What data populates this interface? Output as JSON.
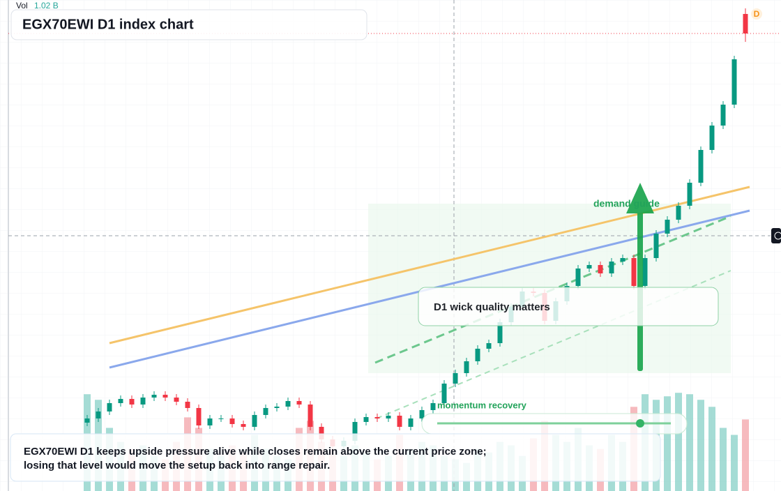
{
  "chart_data": {
    "type": "candlestick",
    "title": "EGX70EWI D1 index chart",
    "volume_label": "Vol",
    "volume_readout": "1.02 B",
    "badge": "D",
    "annotations": [
      "demand guide",
      "D1 wick quality matters",
      "momentum recovery",
      "EGX70EWI D1 keeps upside pressure alive while closes remain above the current price zone;",
      "losing that level would move the setup back into range repair."
    ],
    "open": [
      1098,
      1104,
      1114,
      1126,
      1132,
      1124,
      1134,
      1138,
      1134,
      1128,
      1119,
      1094,
      1104,
      1104,
      1096,
      1092,
      1109,
      1119,
      1121,
      1129,
      1124,
      1092,
      1074,
      1064,
      1072,
      1099,
      1106,
      1104,
      1108,
      1092,
      1104,
      1116,
      1126,
      1154,
      1169,
      1186,
      1204,
      1212,
      1242,
      1264,
      1286,
      1284,
      1244,
      1272,
      1294,
      1319,
      1324,
      1312,
      1329,
      1334,
      1294,
      1334,
      1369,
      1389,
      1409,
      1442,
      1489,
      1524,
      1554,
      1684
    ],
    "high": [
      1109,
      1119,
      1131,
      1137,
      1137,
      1139,
      1143,
      1143,
      1139,
      1133,
      1124,
      1109,
      1109,
      1109,
      1101,
      1114,
      1124,
      1126,
      1134,
      1134,
      1129,
      1097,
      1079,
      1077,
      1104,
      1111,
      1111,
      1113,
      1113,
      1109,
      1121,
      1131,
      1159,
      1174,
      1191,
      1209,
      1217,
      1247,
      1269,
      1291,
      1291,
      1289,
      1277,
      1299,
      1324,
      1329,
      1329,
      1334,
      1339,
      1339,
      1339,
      1374,
      1394,
      1414,
      1447,
      1494,
      1529,
      1559,
      1624,
      1692
    ],
    "low": [
      1093,
      1099,
      1109,
      1121,
      1119,
      1119,
      1129,
      1129,
      1123,
      1114,
      1089,
      1089,
      1099,
      1091,
      1087,
      1087,
      1104,
      1114,
      1116,
      1119,
      1087,
      1069,
      1059,
      1059,
      1067,
      1094,
      1099,
      1099,
      1087,
      1087,
      1099,
      1111,
      1121,
      1149,
      1164,
      1181,
      1199,
      1207,
      1237,
      1259,
      1279,
      1239,
      1239,
      1267,
      1289,
      1314,
      1307,
      1307,
      1324,
      1289,
      1289,
      1329,
      1364,
      1384,
      1404,
      1437,
      1484,
      1519,
      1549,
      1644
    ],
    "close": [
      1104,
      1114,
      1126,
      1132,
      1124,
      1134,
      1138,
      1134,
      1128,
      1119,
      1094,
      1104,
      1104,
      1096,
      1092,
      1109,
      1119,
      1121,
      1129,
      1124,
      1092,
      1074,
      1064,
      1072,
      1099,
      1106,
      1104,
      1108,
      1092,
      1104,
      1116,
      1126,
      1154,
      1169,
      1186,
      1204,
      1212,
      1242,
      1264,
      1286,
      1284,
      1244,
      1272,
      1294,
      1319,
      1324,
      1312,
      1329,
      1334,
      1294,
      1334,
      1369,
      1389,
      1409,
      1442,
      1489,
      1524,
      1554,
      1619,
      1656
    ],
    "volume": [
      1380,
      1300,
      900,
      700,
      600,
      650,
      500,
      450,
      700,
      1050,
      900,
      600,
      500,
      650,
      550,
      800,
      600,
      500,
      450,
      900,
      1000,
      700,
      600,
      500,
      650,
      550,
      450,
      500,
      800,
      600,
      700,
      650,
      500,
      450,
      400,
      600,
      550,
      700,
      650,
      500,
      750,
      1000,
      800,
      700,
      900,
      650,
      600,
      800,
      700,
      1200,
      1380,
      1300,
      1350,
      1400,
      1380,
      1300,
      1200,
      900,
      800,
      1020
    ],
    "ylim": [
      1000,
      1704
    ],
    "y2lim": [
      0,
      7000
    ],
    "up_color": "#089981",
    "down_color": "#f23645"
  }
}
